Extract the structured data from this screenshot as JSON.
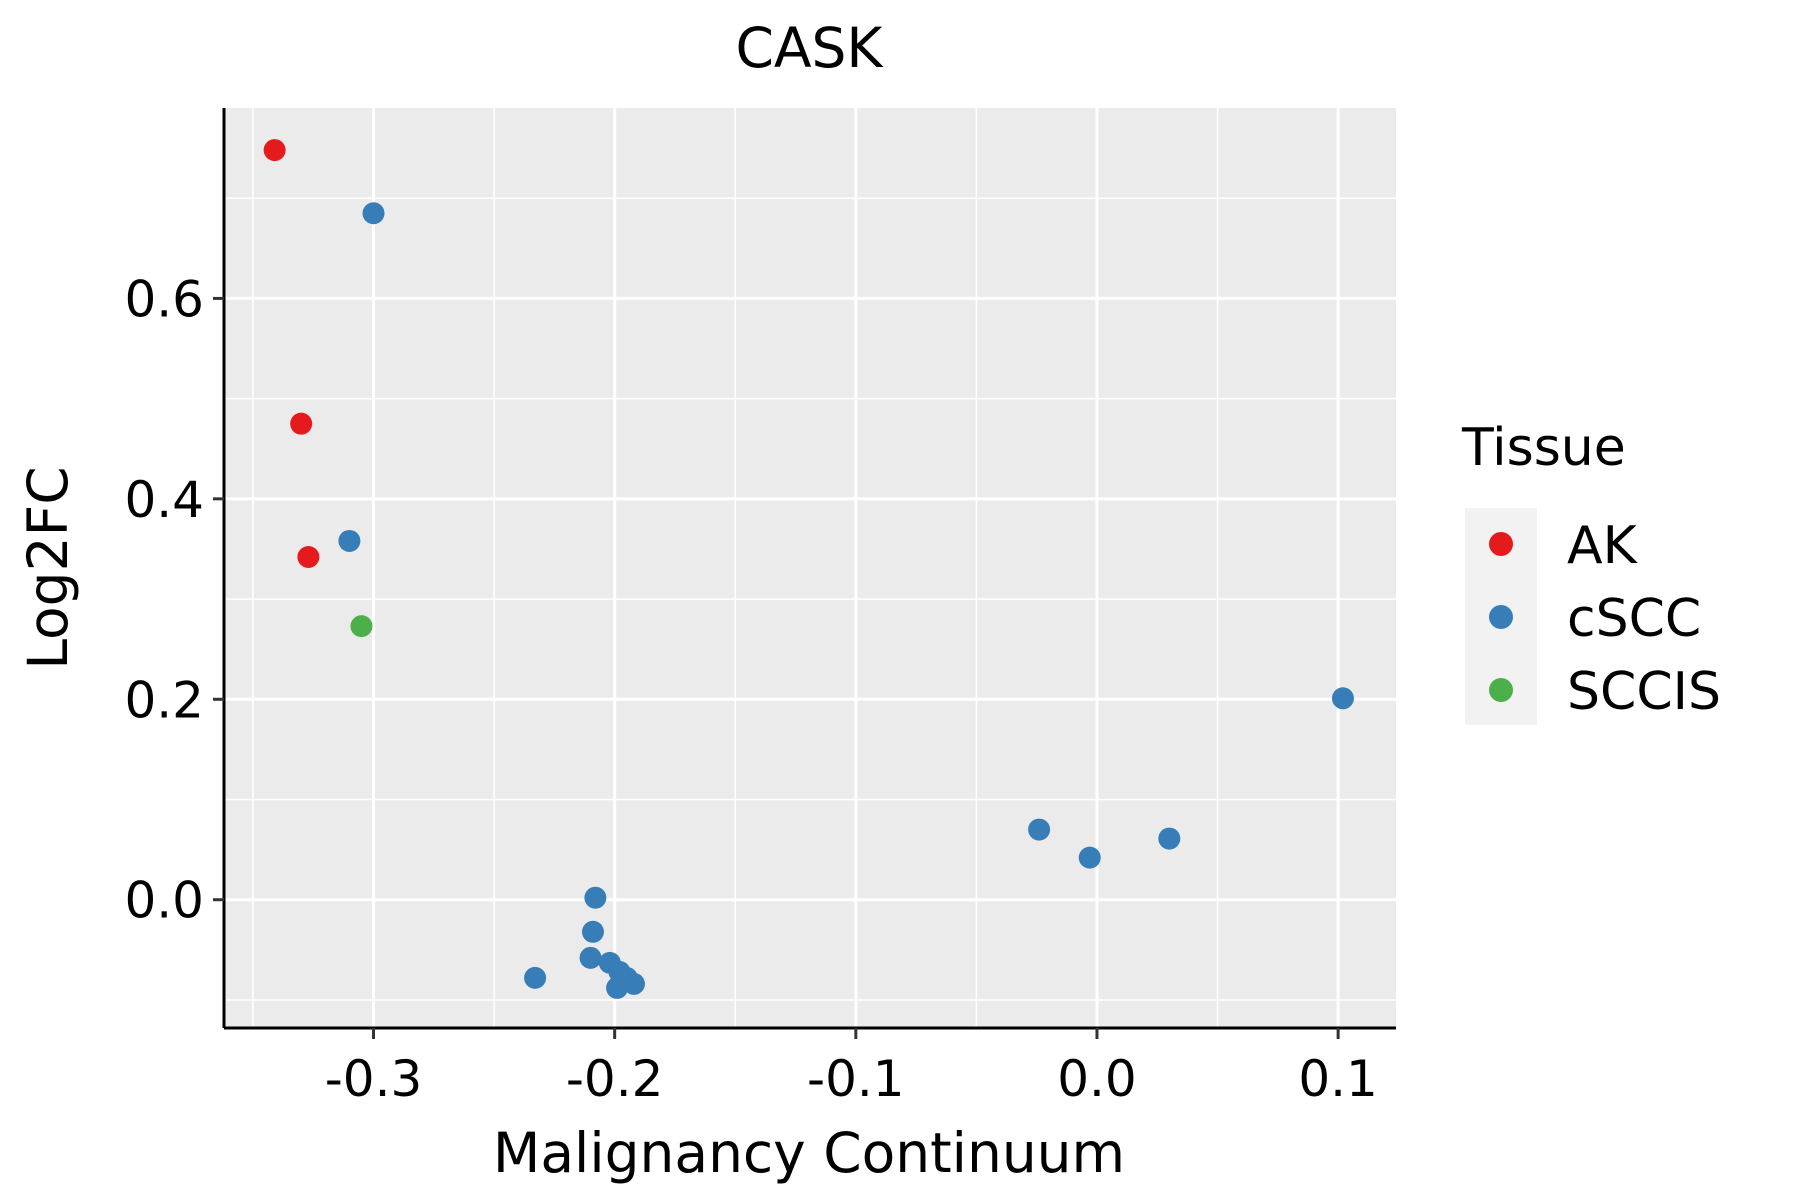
{
  "chart_data": {
    "type": "scatter",
    "title": "CASK",
    "xlabel": "Malignancy Continuum",
    "ylabel": "Log2FC",
    "xlim": [
      -0.362,
      0.124
    ],
    "ylim": [
      -0.128,
      0.79
    ],
    "xticks": [
      -0.3,
      -0.2,
      -0.1,
      0.0,
      0.1
    ],
    "xtick_labels": [
      "-0.3",
      "-0.2",
      "-0.1",
      "0.0",
      "0.1"
    ],
    "yticks": [
      0.0,
      0.2,
      0.4,
      0.6
    ],
    "ytick_labels": [
      "0.0",
      "0.2",
      "0.4",
      "0.6"
    ],
    "grid": true,
    "legend": {
      "title": "Tissue",
      "placement": "right"
    },
    "series": [
      {
        "name": "AK",
        "color": "#E41A1C",
        "points": [
          {
            "x": -0.341,
            "y": 0.748
          },
          {
            "x": -0.33,
            "y": 0.475
          },
          {
            "x": -0.327,
            "y": 0.342
          }
        ]
      },
      {
        "name": "cSCC",
        "color": "#377EB8",
        "points": [
          {
            "x": -0.3,
            "y": 0.685
          },
          {
            "x": -0.31,
            "y": 0.358
          },
          {
            "x": 0.102,
            "y": 0.201
          },
          {
            "x": -0.024,
            "y": 0.07
          },
          {
            "x": 0.03,
            "y": 0.061
          },
          {
            "x": -0.003,
            "y": 0.042
          },
          {
            "x": -0.208,
            "y": 0.002
          },
          {
            "x": -0.209,
            "y": -0.032
          },
          {
            "x": -0.21,
            "y": -0.058
          },
          {
            "x": -0.202,
            "y": -0.063
          },
          {
            "x": -0.198,
            "y": -0.072
          },
          {
            "x": -0.195,
            "y": -0.078
          },
          {
            "x": -0.192,
            "y": -0.084
          },
          {
            "x": -0.199,
            "y": -0.088
          },
          {
            "x": -0.233,
            "y": -0.078
          }
        ]
      },
      {
        "name": "SCCIS",
        "color": "#4DAF4A",
        "points": [
          {
            "x": -0.305,
            "y": 0.273
          }
        ]
      }
    ]
  }
}
